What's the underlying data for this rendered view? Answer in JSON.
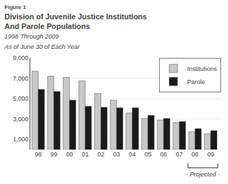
{
  "chart_data": {
    "type": "bar",
    "title": [
      "Figure 1",
      "Division of Juvenile Justice Institutions",
      "And Parole Populations"
    ],
    "subtitle": [
      "1998 Through 2009",
      "As of June 30 of Each Year"
    ],
    "categories": [
      "98",
      "99",
      "00",
      "01",
      "02",
      "03",
      "04",
      "05",
      "06",
      "07",
      "08",
      "09"
    ],
    "series": [
      {
        "name": "Institutions",
        "color": "#c8c8c8",
        "values": [
          7700,
          7200,
          7100,
          6750,
          5500,
          4850,
          3600,
          3050,
          2900,
          2650,
          1750,
          1550
        ]
      },
      {
        "name": "Parole",
        "color": "#1a1a1a",
        "values": [
          5900,
          5700,
          4850,
          4250,
          4150,
          4100,
          4100,
          3350,
          3050,
          2750,
          2050,
          1850
        ]
      }
    ],
    "ylim": [
      0,
      9000
    ],
    "yticks": [
      {
        "value": 1000,
        "label": "1,000"
      },
      {
        "value": 3000,
        "label": "3,000"
      },
      {
        "value": 5000,
        "label": "5,000"
      },
      {
        "value": 7000,
        "label": "7,000"
      },
      {
        "value": 9000,
        "label": "9,000"
      }
    ],
    "grid": true,
    "legend": "upper right",
    "annotations": [
      {
        "text": "- Projected -",
        "categories": [
          "08",
          "09"
        ]
      }
    ]
  }
}
